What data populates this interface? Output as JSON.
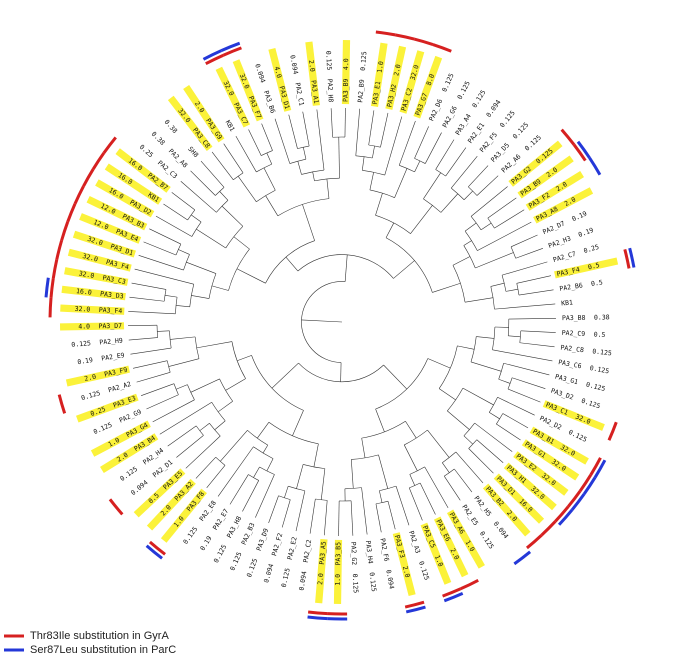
{
  "leaves": [
    {
      "id": "PA3_B8",
      "mic": "0.38"
    },
    {
      "id": "PA2_C9",
      "mic": "0.5"
    },
    {
      "id": "PA2_C8",
      "mic": "0.125"
    },
    {
      "id": "PA3_C6",
      "mic": "0.125"
    },
    {
      "id": "PA3_G1",
      "mic": "0.125"
    },
    {
      "id": "PA3_D2",
      "mic": "0.125"
    },
    {
      "id": "PA3_C1",
      "mic": "32.0",
      "hl": true,
      "gyrA": true
    },
    {
      "id": "PA2_D2",
      "mic": "0.125"
    },
    {
      "id": "PA3_B1",
      "mic": "32.0",
      "hl": true,
      "gyrA": true,
      "parC": true
    },
    {
      "id": "PA3_G1",
      "mic": "32.0",
      "hl": true,
      "gyrA": true,
      "parC": true
    },
    {
      "id": "PA3_E2",
      "mic": "32.0",
      "hl": true,
      "gyrA": true,
      "parC": true
    },
    {
      "id": "PA3_H1",
      "mic": "32.0",
      "hl": true,
      "gyrA": true,
      "parC": true
    },
    {
      "id": "PA3_D1",
      "mic": "16.0",
      "hl": true,
      "gyrA": true
    },
    {
      "id": "PA3_B2",
      "mic": "2.0",
      "hl": true,
      "gyrA": true
    },
    {
      "id": "PA2_H5",
      "mic": "0.094",
      "parC": true
    },
    {
      "id": "PA2_E5",
      "mic": "0.125"
    },
    {
      "id": "PA3_A6",
      "mic": "1.0",
      "hl": true
    },
    {
      "id": "PA3_E6",
      "mic": "2.0",
      "hl": true,
      "gyrA": true
    },
    {
      "id": "PA3_C5",
      "mic": "1.0",
      "hl": true,
      "gyrA": true,
      "parC": true
    },
    {
      "id": "PA2_A3",
      "mic": "0.125"
    },
    {
      "id": "PA3_F3",
      "mic": "2.0",
      "hl": true,
      "gyrA": true,
      "parC": true
    },
    {
      "id": "PA2_F6",
      "mic": "0.094"
    },
    {
      "id": "PA3_H4",
      "mic": "0.125"
    },
    {
      "id": "PA2_G2",
      "mic": "0.125"
    },
    {
      "id": "PA3_B5",
      "mic": "1.0",
      "hl": true,
      "gyrA": true,
      "parC": true
    },
    {
      "id": "PA3_A5",
      "mic": "2.0",
      "hl": true,
      "gyrA": true,
      "parC": true
    },
    {
      "id": "PA2_C2",
      "mic": "0.094"
    },
    {
      "id": "PA2_E2",
      "mic": "0.125"
    },
    {
      "id": "PA2_F2",
      "mic": "0.094"
    },
    {
      "id": "PA3_D9",
      "mic": "0.125"
    },
    {
      "id": "PA2_B3",
      "mic": "0.125"
    },
    {
      "id": "PA3_H8",
      "mic": "0.125"
    },
    {
      "id": "PA2_E7",
      "mic": "0.19"
    },
    {
      "id": "PA2_E8",
      "mic": "0.125"
    },
    {
      "id": "PA3_F8",
      "mic": "1.0",
      "hl": true,
      "gyrA": true,
      "parC": true
    },
    {
      "id": "PA3_A2",
      "mic": "2.0",
      "hl": true
    },
    {
      "id": "PA3_E5",
      "mic": "0.5",
      "hl": true
    },
    {
      "id": "PA2_D1",
      "mic": "0.094",
      "gyrA": true
    },
    {
      "id": "PA2_H4",
      "mic": "0.125"
    },
    {
      "id": "PA3_B4",
      "mic": "2.0",
      "hl": true
    },
    {
      "id": "PA3_G4",
      "mic": "1.0",
      "hl": true
    },
    {
      "id": "PA2_G9",
      "mic": "0.125"
    },
    {
      "id": "PA3_E3",
      "mic": "0.25",
      "hl": true
    },
    {
      "id": "PA2_A2",
      "mic": "0.125",
      "gyrA": true
    },
    {
      "id": "PA3_F9",
      "mic": "2.0",
      "hl": true
    },
    {
      "id": "PA2_E9",
      "mic": "0.19"
    },
    {
      "id": "PA2_H9",
      "mic": "0.125"
    },
    {
      "id": "PA3_D7",
      "mic": "4.0",
      "hl": true
    },
    {
      "id": "PA3_F4",
      "mic": "32.0",
      "hl": true,
      "gyrA": true
    },
    {
      "id": "PA3_D3",
      "mic": "16.0",
      "hl": true,
      "gyrA": true,
      "parC": true
    },
    {
      "id": "PA3_C3",
      "mic": "32.0",
      "hl": true,
      "gyrA": true
    },
    {
      "id": "PA3_F4",
      "mic": "32.0",
      "hl": true,
      "gyrA": true
    },
    {
      "id": "PA3_D1",
      "mic": "32.0",
      "hl": true,
      "gyrA": true
    },
    {
      "id": "PA3_E4",
      "mic": "12.0",
      "hl": true,
      "gyrA": true
    },
    {
      "id": "PA3_B3",
      "mic": "12.0",
      "hl": true,
      "gyrA": true
    },
    {
      "id": "PA3_D2",
      "mic": "16.0",
      "hl": true,
      "gyrA": true
    },
    {
      "id": "KB1",
      "mic": "16.0",
      "hl": true,
      "gyrA": true
    },
    {
      "id": "PA2_B7",
      "mic": "16.0",
      "hl": true,
      "gyrA": true
    },
    {
      "id": "PA2_C3",
      "mic": "0.25"
    },
    {
      "id": "PA2_A8",
      "mic": "0.38"
    },
    {
      "id": "SH8",
      "mic": "0.38"
    },
    {
      "id": "PA3_C8",
      "mic": "32.0",
      "hl": true
    },
    {
      "id": "PA3_G9",
      "mic": "2.0",
      "hl": true
    },
    {
      "id": "KB1"
    },
    {
      "id": "PA3_C7",
      "mic": "32.0",
      "hl": true,
      "gyrA": true,
      "parC": true
    },
    {
      "id": "PA3_F7",
      "mic": "32.0",
      "hl": true,
      "gyrA": true,
      "parC": true
    },
    {
      "id": "PA3_B6",
      "mic": "0.094"
    },
    {
      "id": "PA3_D1",
      "mic": "4.0",
      "hl": true
    },
    {
      "id": "PA2_C1",
      "mic": "0.094"
    },
    {
      "id": "PA3_A1",
      "mic": "2.0",
      "hl": true
    },
    {
      "id": "PA2_H8",
      "mic": "0.125"
    },
    {
      "id": "PA3_B9",
      "mic": "4.0",
      "hl": true
    },
    {
      "id": "PA2_B9",
      "mic": "0.125"
    },
    {
      "id": "PA3_E1",
      "mic": "1.0",
      "hl": true,
      "gyrA": true
    },
    {
      "id": "PA3_H2",
      "mic": "2.0",
      "hl": true,
      "gyrA": true
    },
    {
      "id": "PA3_C2",
      "mic": "32.0",
      "hl": true,
      "gyrA": true
    },
    {
      "id": "PA3_G7",
      "mic": "8.0",
      "hl": true,
      "gyrA": true
    },
    {
      "id": "PA2_D6",
      "mic": "0.125"
    },
    {
      "id": "PA2_G6",
      "mic": "0.125"
    },
    {
      "id": "PA3_A4",
      "mic": "0.125"
    },
    {
      "id": "PA2_E1",
      "mic": "0.094"
    },
    {
      "id": "PA2_F5",
      "mic": "0.125"
    },
    {
      "id": "PA3_D5",
      "mic": "0.125"
    },
    {
      "id": "PA2_A6",
      "mic": "0.125"
    },
    {
      "id": "PA3_G2",
      "mic": "0.125",
      "hl": true,
      "gyrA": true
    },
    {
      "id": "PA3_B9",
      "mic": "2.0",
      "hl": true,
      "gyrA": true,
      "parC": true
    },
    {
      "id": "PA3_F2",
      "mic": "2.0",
      "hl": true,
      "parC": true
    },
    {
      "id": "PA3_A8",
      "mic": "2.0",
      "hl": true
    },
    {
      "id": "PA2_D7",
      "mic": "0.19"
    },
    {
      "id": "PA2_H3",
      "mic": "0.19"
    },
    {
      "id": "PA2_C7",
      "mic": "0.25"
    },
    {
      "id": "PA3_F4",
      "mic": "0.5",
      "hl": true,
      "gyrA": true,
      "parC": true
    },
    {
      "id": "PA2_B6",
      "mic": "0.5"
    },
    {
      "id": "KB1"
    }
  ],
  "legend": {
    "gyrA": "Thr83Ile substitution in GyrA",
    "parC": "Ser87Leu substitution in ParC"
  }
}
